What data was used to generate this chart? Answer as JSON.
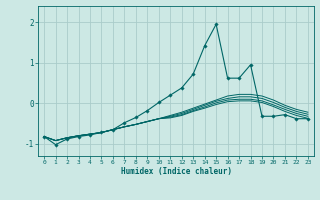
{
  "xlabel": "Humidex (Indice chaleur)",
  "background_color": "#cce8e4",
  "grid_color": "#aaccca",
  "line_color": "#006666",
  "x_values": [
    0,
    1,
    2,
    3,
    4,
    5,
    6,
    7,
    8,
    9,
    10,
    11,
    12,
    13,
    14,
    15,
    16,
    17,
    18,
    19,
    20,
    21,
    22,
    23
  ],
  "series": [
    [
      -0.82,
      -1.02,
      -0.88,
      -0.82,
      -0.78,
      -0.72,
      -0.65,
      -0.48,
      -0.35,
      -0.18,
      0.02,
      0.2,
      0.38,
      0.72,
      1.42,
      1.95,
      0.62,
      0.62,
      0.95,
      -0.32,
      -0.32,
      -0.28,
      -0.38,
      -0.38
    ],
    [
      -0.82,
      -0.92,
      -0.85,
      -0.8,
      -0.76,
      -0.72,
      -0.65,
      -0.58,
      -0.52,
      -0.45,
      -0.38,
      -0.3,
      -0.22,
      -0.12,
      -0.02,
      0.08,
      0.18,
      0.22,
      0.22,
      0.18,
      0.08,
      -0.05,
      -0.15,
      -0.22
    ],
    [
      -0.82,
      -0.92,
      -0.85,
      -0.8,
      -0.76,
      -0.72,
      -0.65,
      -0.58,
      -0.52,
      -0.45,
      -0.38,
      -0.32,
      -0.25,
      -0.15,
      -0.05,
      0.05,
      0.12,
      0.16,
      0.16,
      0.12,
      0.02,
      -0.1,
      -0.2,
      -0.27
    ],
    [
      -0.82,
      -0.92,
      -0.85,
      -0.8,
      -0.76,
      -0.72,
      -0.65,
      -0.58,
      -0.52,
      -0.45,
      -0.38,
      -0.34,
      -0.28,
      -0.18,
      -0.09,
      0.01,
      0.08,
      0.1,
      0.1,
      0.06,
      -0.04,
      -0.15,
      -0.25,
      -0.32
    ],
    [
      -0.82,
      -0.92,
      -0.85,
      -0.8,
      -0.76,
      -0.72,
      -0.65,
      -0.58,
      -0.52,
      -0.45,
      -0.38,
      -0.36,
      -0.3,
      -0.2,
      -0.12,
      -0.03,
      0.04,
      0.06,
      0.06,
      0.02,
      -0.08,
      -0.2,
      -0.3,
      -0.37
    ]
  ],
  "ylim": [
    -1.3,
    2.4
  ],
  "xlim": [
    -0.5,
    23.5
  ],
  "yticks": [
    -1,
    0,
    1,
    2
  ],
  "xticks": [
    0,
    1,
    2,
    3,
    4,
    5,
    6,
    7,
    8,
    9,
    10,
    11,
    12,
    13,
    14,
    15,
    16,
    17,
    18,
    19,
    20,
    21,
    22,
    23
  ],
  "figsize": [
    3.2,
    2.0
  ],
  "dpi": 100
}
